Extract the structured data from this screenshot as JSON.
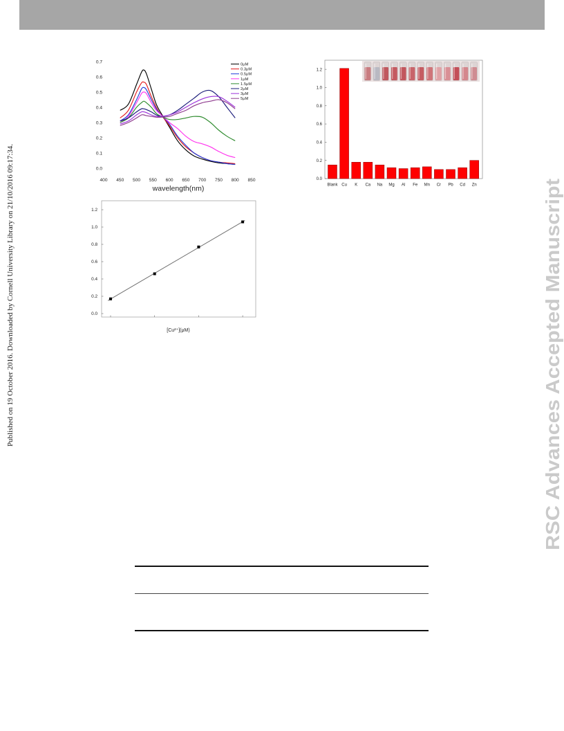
{
  "header": {
    "color": "#a6a6a6"
  },
  "side_note": "Published on 19 October 2016. Downloaded by Cornell University Library on 21/10/2016 09:17:34.",
  "watermark": {
    "text": "RSC Advances Accepted Manuscript",
    "color": "#cacaca"
  },
  "chart_data": [
    {
      "type": "line",
      "xlabel": "wavelength(nm)",
      "xlim": [
        400,
        850
      ],
      "ylim": [
        0,
        0.7
      ],
      "x_ticks": [
        "400",
        "450",
        "500",
        "550",
        "600",
        "650",
        "700",
        "750",
        "800",
        "850"
      ],
      "y_ticks": [
        "0.0",
        "0.1",
        "0.2",
        "0.3",
        "0.4",
        "0.5",
        "0.6",
        "0.7"
      ],
      "grid": false,
      "legend_position": "top-right",
      "x": [
        450,
        475,
        500,
        515,
        522,
        530,
        545,
        560,
        575,
        600,
        625,
        650,
        675,
        700,
        725,
        750,
        775,
        800
      ],
      "series": [
        {
          "name": "0μM",
          "color": "#000000",
          "values": [
            0.38,
            0.42,
            0.55,
            0.63,
            0.645,
            0.62,
            0.52,
            0.42,
            0.36,
            0.27,
            0.18,
            0.12,
            0.08,
            0.06,
            0.045,
            0.035,
            0.03,
            0.025
          ]
        },
        {
          "name": "0.3μM",
          "color": "#e41a1c",
          "values": [
            0.33,
            0.38,
            0.5,
            0.56,
            0.565,
            0.55,
            0.47,
            0.4,
            0.35,
            0.28,
            0.2,
            0.14,
            0.1,
            0.07,
            0.05,
            0.04,
            0.035,
            0.03
          ]
        },
        {
          "name": "0.5μM",
          "color": "#1f3bd8",
          "values": [
            0.31,
            0.35,
            0.45,
            0.52,
            0.53,
            0.515,
            0.45,
            0.39,
            0.35,
            0.29,
            0.21,
            0.15,
            0.1,
            0.07,
            0.05,
            0.04,
            0.03,
            0.025
          ]
        },
        {
          "name": "1μM",
          "color": "#ff33ee",
          "values": [
            0.3,
            0.34,
            0.43,
            0.49,
            0.5,
            0.49,
            0.43,
            0.38,
            0.35,
            0.3,
            0.26,
            0.21,
            0.175,
            0.16,
            0.14,
            0.11,
            0.085,
            0.07
          ]
        },
        {
          "name": "1.5μM",
          "color": "#2e8b2e",
          "values": [
            0.3,
            0.33,
            0.4,
            0.43,
            0.44,
            0.43,
            0.4,
            0.36,
            0.34,
            0.32,
            0.32,
            0.33,
            0.34,
            0.335,
            0.3,
            0.25,
            0.21,
            0.18
          ]
        },
        {
          "name": "2μM",
          "color": "#1a1a7a",
          "values": [
            0.31,
            0.33,
            0.37,
            0.39,
            0.39,
            0.385,
            0.37,
            0.35,
            0.34,
            0.35,
            0.38,
            0.42,
            0.46,
            0.5,
            0.51,
            0.47,
            0.4,
            0.33
          ]
        },
        {
          "name": "3μM",
          "color": "#9b30d9",
          "values": [
            0.29,
            0.31,
            0.35,
            0.37,
            0.37,
            0.365,
            0.35,
            0.34,
            0.34,
            0.35,
            0.37,
            0.4,
            0.43,
            0.455,
            0.47,
            0.47,
            0.44,
            0.4
          ]
        },
        {
          "name": "5μM",
          "color": "#8e3a8e",
          "values": [
            0.28,
            0.3,
            0.33,
            0.35,
            0.35,
            0.345,
            0.34,
            0.335,
            0.335,
            0.34,
            0.36,
            0.38,
            0.41,
            0.43,
            0.44,
            0.45,
            0.43,
            0.39
          ]
        }
      ]
    },
    {
      "type": "bar",
      "categories": [
        "Blank",
        "Cu",
        "K",
        "Ca",
        "Na",
        "Mg",
        "Al",
        "Fe",
        "Mn",
        "Cr",
        "Pb",
        "Cd",
        "Zn"
      ],
      "values": [
        0.15,
        1.21,
        0.18,
        0.18,
        0.15,
        0.12,
        0.11,
        0.12,
        0.13,
        0.1,
        0.1,
        0.12,
        0.2
      ],
      "ylim": [
        0,
        1.3
      ],
      "y_ticks": [
        "0.0",
        "0.2",
        "0.4",
        "0.6",
        "0.8",
        "1.0",
        "1.2"
      ],
      "bar_color": "#ff0000",
      "grid": false,
      "inset_photo": {
        "position": "top-right",
        "vial_colors": [
          "#c97c80",
          "#b9b9c2",
          "#c0585e",
          "#c45a60",
          "#c2565d",
          "#c8646a",
          "#c55c62",
          "#cf7479",
          "#e0a2a6",
          "#d98f95",
          "#c34f58",
          "#d4878d",
          "#cf8c92"
        ]
      }
    },
    {
      "type": "scatter",
      "xlabel": "[Cu²⁺](μM)",
      "values": [
        0.17,
        0.46,
        0.77,
        1.06
      ],
      "ylim": [
        0,
        1.3
      ],
      "y_ticks": [
        "0.0",
        "0.2",
        "0.4",
        "0.6",
        "0.8",
        "1.0",
        "1.2"
      ],
      "fit_line": "linear",
      "marker": "square",
      "marker_color": "#000000",
      "grid": false
    }
  ]
}
